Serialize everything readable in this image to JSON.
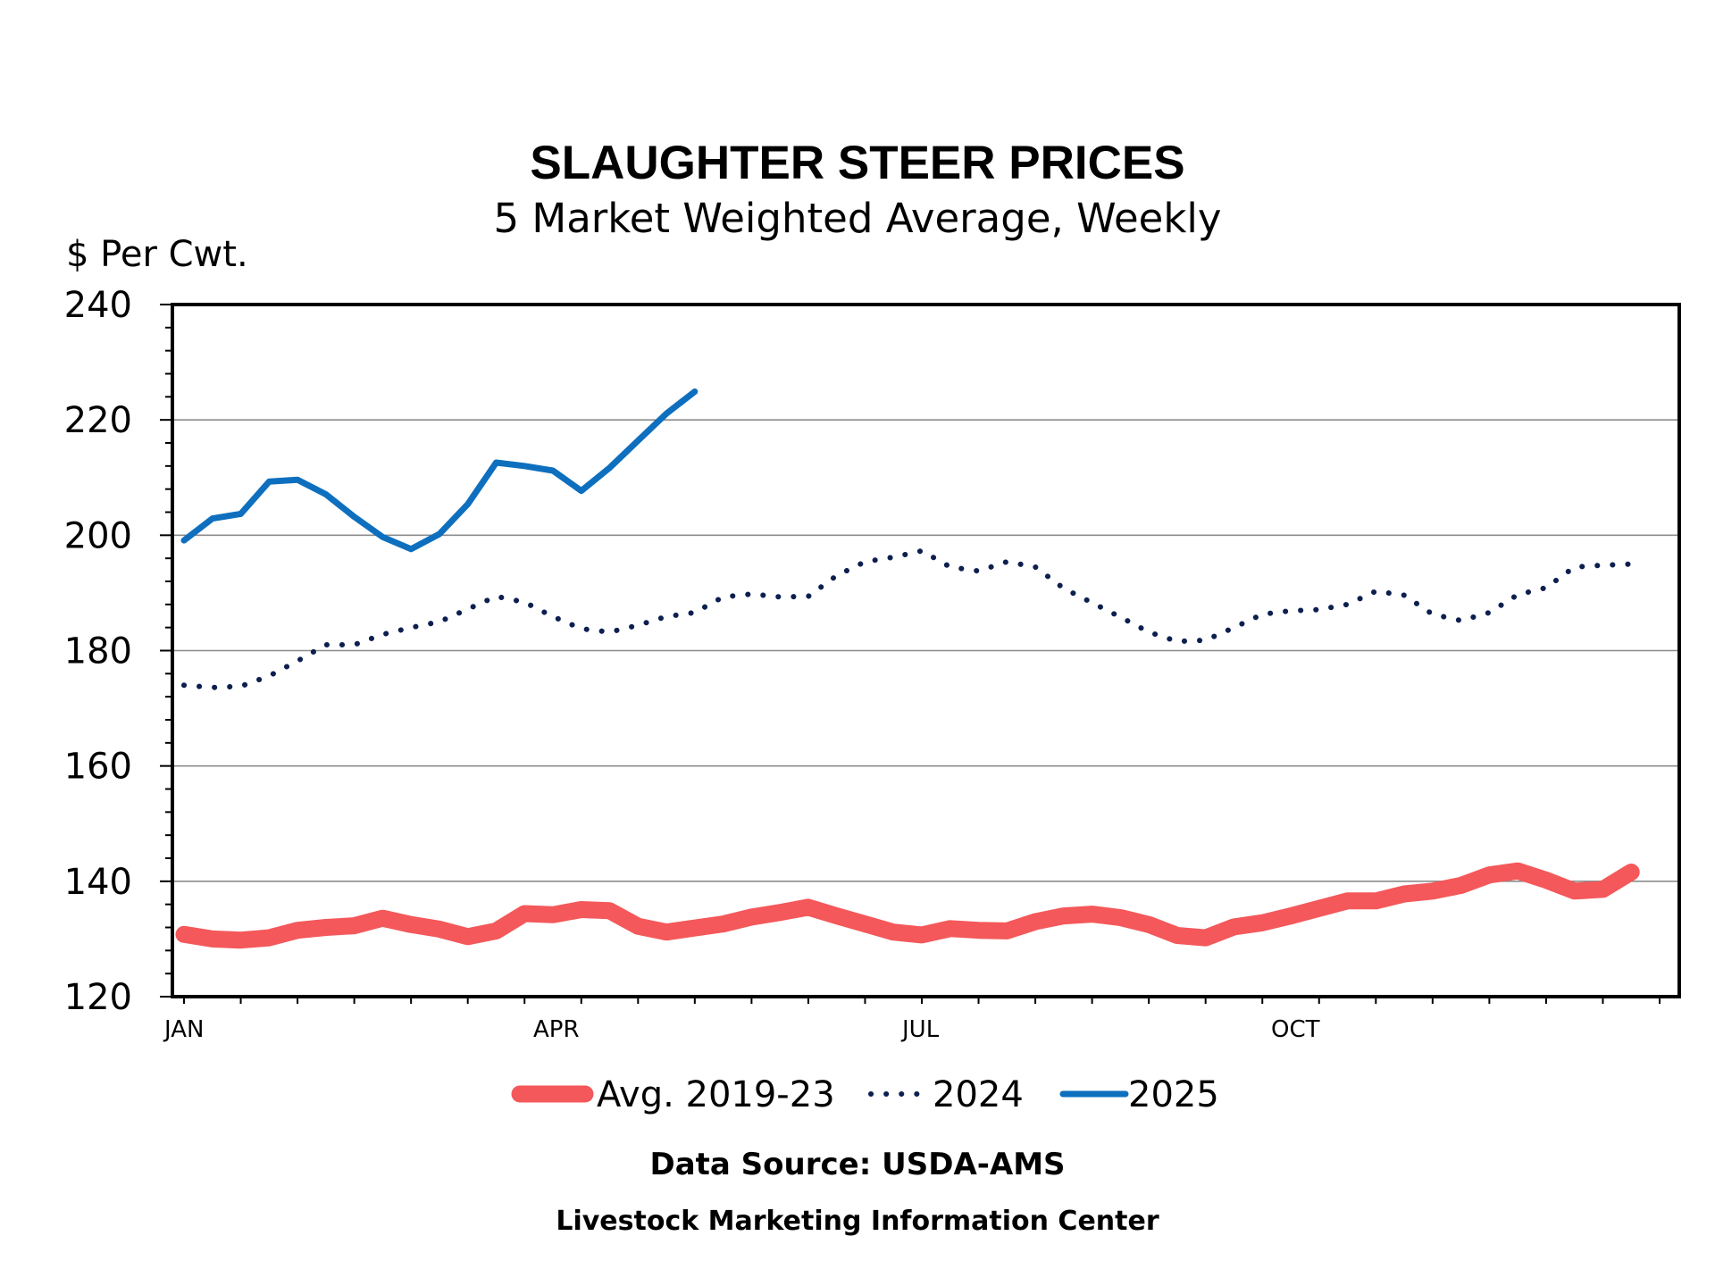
{
  "chart_data": {
    "type": "line",
    "title": "SLAUGHTER STEER PRICES",
    "subtitle": "5 Market Weighted Average, Weekly",
    "ylabel": "$ Per Cwt.",
    "ylim": [
      120,
      240
    ],
    "yticks": [
      120,
      140,
      160,
      180,
      200,
      220,
      240
    ],
    "x_unit": "week of year",
    "xlim": [
      1,
      53
    ],
    "xtick_labels": [
      {
        "label": "JAN",
        "week": 1
      },
      {
        "label": "APR",
        "week": 14
      },
      {
        "label": "JUL",
        "week": 27
      },
      {
        "label": "OCT",
        "week": 40
      }
    ],
    "grid": true,
    "legend_position": "bottom",
    "series": [
      {
        "name": "Avg. 2019-23",
        "color": "#f4585a",
        "style": "thick",
        "values": [
          130.8,
          130.0,
          129.8,
          130.2,
          131.5,
          132.0,
          132.3,
          133.6,
          132.5,
          131.7,
          130.4,
          131.4,
          134.4,
          134.2,
          135.1,
          134.9,
          132.2,
          131.2,
          131.9,
          132.6,
          133.8,
          134.6,
          135.5,
          134.0,
          132.6,
          131.2,
          130.7,
          131.8,
          131.5,
          131.4,
          133.0,
          134.0,
          134.3,
          133.7,
          132.5,
          130.6,
          130.2,
          132.1,
          132.8,
          134.0,
          135.3,
          136.6,
          136.6,
          137.8,
          138.3,
          139.3,
          141.1,
          141.8,
          140.2,
          138.3,
          138.6,
          141.6
        ]
      },
      {
        "name": "2024",
        "color": "#0d1f4f",
        "style": "dotted",
        "values": [
          174.0,
          173.6,
          173.8,
          175.6,
          178.2,
          181.0,
          181.0,
          182.8,
          184.0,
          185.0,
          187.2,
          189.4,
          188.4,
          185.9,
          183.8,
          183.2,
          184.4,
          185.9,
          186.6,
          189.3,
          189.8,
          189.3,
          189.4,
          193.0,
          195.4,
          196.2,
          197.3,
          194.5,
          193.8,
          195.4,
          194.5,
          190.8,
          188.3,
          185.8,
          183.2,
          181.6,
          181.8,
          184.0,
          186.3,
          186.9,
          187.1,
          188.0,
          190.3,
          189.6,
          186.3,
          185.2,
          186.6,
          189.7,
          190.9,
          194.5,
          194.8,
          195.0
        ]
      },
      {
        "name": "2025",
        "color": "#0e6fbe",
        "style": "solid",
        "values": [
          199.1,
          202.9,
          203.7,
          209.3,
          209.6,
          207.1,
          203.2,
          199.7,
          197.6,
          200.2,
          205.4,
          212.6,
          212.0,
          211.2,
          207.7,
          211.7,
          216.4,
          221.1,
          224.9
        ]
      }
    ]
  },
  "footer": {
    "source": "Data Source:  USDA-AMS",
    "center": "Livestock Marketing Information Center"
  }
}
